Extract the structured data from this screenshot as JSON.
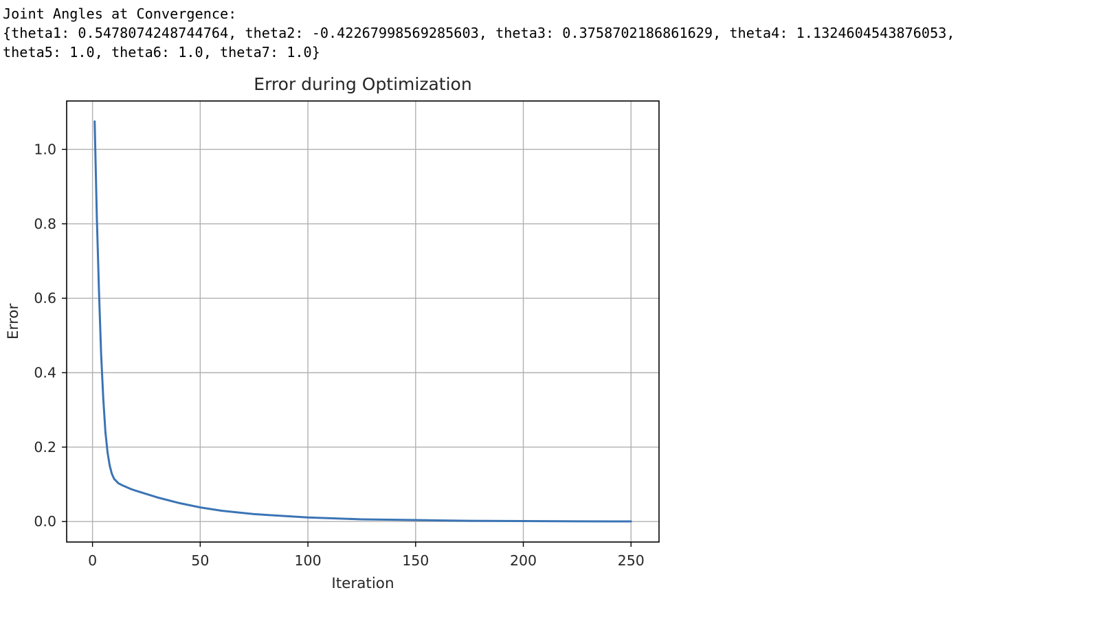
{
  "output": {
    "lines": [
      "Joint Angles at Convergence:",
      "{theta1: 0.5478074248744764, theta2: -0.42267998569285603, theta3: 0.3758702186861629, theta4: 1.1324604543876053,",
      "theta5: 1.0, theta6: 1.0, theta7: 1.0}"
    ]
  },
  "chart_data": {
    "type": "line",
    "title": "Error during Optimization",
    "xlabel": "Iteration",
    "ylabel": "Error",
    "xlim": [
      -12,
      263
    ],
    "ylim": [
      -0.055,
      1.13
    ],
    "xticks": [
      0,
      50,
      100,
      150,
      200,
      250
    ],
    "yticks": [
      0.0,
      0.2,
      0.4,
      0.6,
      0.8,
      1.0
    ],
    "ytick_labels": [
      "0.0",
      "0.2",
      "0.4",
      "0.6",
      "0.8",
      "1.0"
    ],
    "grid": true,
    "line_color": "#3a74b4",
    "series": [
      {
        "x": [
          1,
          2,
          3,
          4,
          5,
          6,
          7,
          8,
          9,
          10,
          12,
          14,
          16,
          18,
          20,
          25,
          30,
          40,
          50,
          60,
          75,
          100,
          125,
          150,
          175,
          200,
          225,
          250
        ],
        "y": [
          1.075,
          0.82,
          0.62,
          0.45,
          0.33,
          0.24,
          0.185,
          0.15,
          0.128,
          0.115,
          0.103,
          0.097,
          0.092,
          0.087,
          0.083,
          0.074,
          0.065,
          0.05,
          0.038,
          0.029,
          0.02,
          0.011,
          0.006,
          0.004,
          0.002,
          0.0012,
          0.0006,
          0.0003
        ]
      }
    ]
  }
}
